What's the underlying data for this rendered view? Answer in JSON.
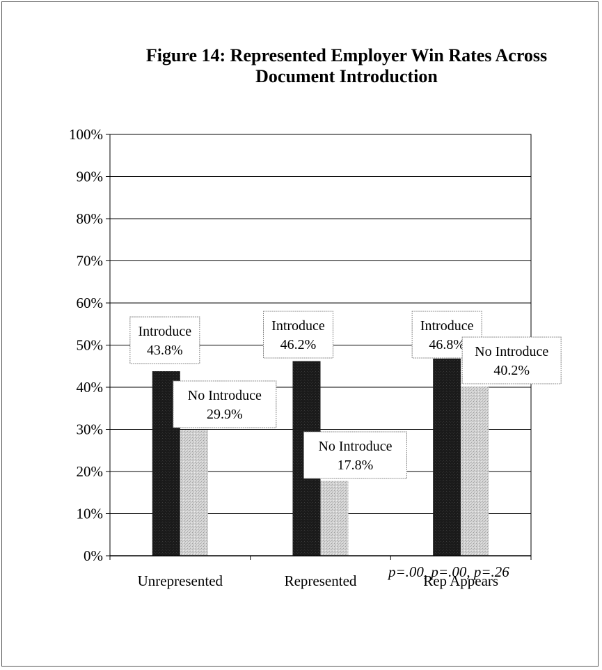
{
  "chart_data": {
    "type": "bar",
    "title": "Figure 14: Represented Employer Win Rates Across Document Introduction",
    "title_lines": [
      "Figure 14: Represented Employer Win Rates Across",
      "Document Introduction"
    ],
    "categories": [
      "Unrepresented",
      "Represented",
      "Rep Appears"
    ],
    "series": [
      {
        "name": "Introduce",
        "values": [
          43.8,
          46.2,
          46.8
        ],
        "labels": [
          "43.8%",
          "46.2%",
          "46.8%"
        ],
        "color": "#1a1a1a"
      },
      {
        "name": "No Introduce",
        "values": [
          29.9,
          17.8,
          40.2
        ],
        "labels": [
          "29.9%",
          "17.8%",
          "40.2%"
        ],
        "color": "#c8c8c8"
      }
    ],
    "ylim": [
      0,
      100
    ],
    "yticks": [
      "0%",
      "10%",
      "20%",
      "30%",
      "40%",
      "50%",
      "60%",
      "70%",
      "80%",
      "90%",
      "100%"
    ],
    "grid": true,
    "legend": "none",
    "xlabel": "",
    "ylabel": ""
  },
  "note": "p=.00, p=.00, p=.26",
  "colors": {
    "gridline": "#000000",
    "plot_border": "#000000"
  }
}
